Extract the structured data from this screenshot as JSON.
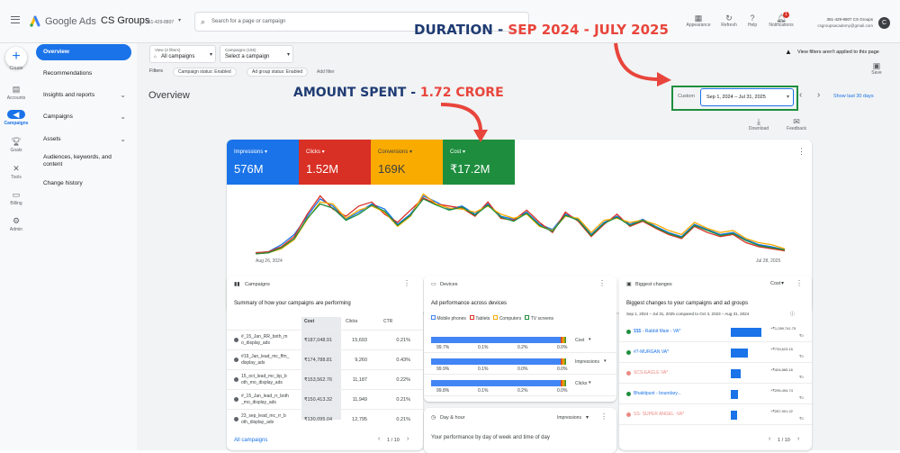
{
  "top": {
    "menu_icon": "menu-icon",
    "logo_text": "Google Ads",
    "account_name": "CS Groups",
    "account_id": "351-429-8807",
    "search_placeholder": "Search for a page or campaign",
    "appearance": "Appearance",
    "refresh": "Refresh",
    "help": "Help",
    "notifications": "Notifications",
    "notif_count": "1",
    "user_id": "351-429-8807 CS Groups",
    "user_email": "csgroupsacademy@gmail.com",
    "avatar_letter": "C"
  },
  "rail": [
    {
      "label": "Create",
      "icon": "plus-icon"
    },
    {
      "label": "Accounts",
      "icon": "accounts-icon"
    },
    {
      "label": "Campaigns",
      "icon": "campaigns-icon"
    },
    {
      "label": "Goals",
      "icon": "goals-icon"
    },
    {
      "label": "Tools",
      "icon": "tools-icon"
    },
    {
      "label": "Billing",
      "icon": "billing-icon"
    },
    {
      "label": "Admin",
      "icon": "admin-icon"
    }
  ],
  "sidebar": {
    "items": [
      {
        "label": "Overview"
      },
      {
        "label": "Recommendations"
      },
      {
        "label": "Insights and reports"
      },
      {
        "label": "Campaigns"
      },
      {
        "label": "Assets"
      },
      {
        "label": "Audiences, keywords, and content"
      },
      {
        "label": "Change history"
      }
    ]
  },
  "filters": {
    "view_label": "View (2 filters)",
    "view_value": "All campaigns",
    "campaigns_label": "Campaigns (155)",
    "campaigns_value": "Select a campaign",
    "filters_word": "Filters",
    "chip1": "Campaign status: Enabled",
    "chip2": "Ad group status: Enabled",
    "add_filter": "Add filter",
    "notice": "View filters aren't applied to this page",
    "save": "Save"
  },
  "overview": {
    "title": "Overview",
    "custom": "Custom",
    "date_range": "Sep 1, 2024 – Jul 31, 2025",
    "show_last": "Show last 30 days",
    "download": "Download",
    "feedback": "Feedback"
  },
  "annotations": {
    "duration_prefix": "DURATION - ",
    "duration_value": "SEP 2024 - JULY 2025",
    "amount_prefix": "AMOUNT SPENT - ",
    "amount_value": "1.72 CRORE"
  },
  "metrics": [
    {
      "label": "Impressions",
      "value": "576M",
      "color": "#1a73e8"
    },
    {
      "label": "Clicks",
      "value": "1.52M",
      "color": "#d93025"
    },
    {
      "label": "Conversions",
      "value": "169K",
      "color": "#f9ab00"
    },
    {
      "label": "Cost",
      "value": "₹17.2M",
      "color": "#1e8e3e"
    }
  ],
  "chart_data": {
    "type": "line",
    "x_start_label": "Aug 26, 2024",
    "x_end_label": "Jul 28, 2025",
    "series": [
      {
        "name": "Impressions",
        "color": "#1a73e8",
        "values": [
          2,
          3,
          10,
          20,
          38,
          55,
          48,
          35,
          42,
          50,
          45,
          30,
          40,
          58,
          52,
          45,
          48,
          40,
          50,
          38,
          35,
          42,
          30,
          25,
          40,
          35,
          20,
          32,
          38,
          30,
          35,
          28,
          22,
          18,
          30,
          25,
          20,
          22,
          15,
          10,
          8,
          5
        ]
      },
      {
        "name": "Clicks",
        "color": "#d93025",
        "values": [
          2,
          3,
          8,
          18,
          40,
          58,
          45,
          38,
          48,
          52,
          40,
          32,
          44,
          56,
          50,
          48,
          46,
          38,
          52,
          36,
          34,
          44,
          32,
          22,
          42,
          33,
          18,
          30,
          40,
          28,
          33,
          26,
          20,
          16,
          28,
          22,
          18,
          20,
          12,
          8,
          6,
          4
        ]
      },
      {
        "name": "Conversions",
        "color": "#f9ab00",
        "values": [
          1,
          2,
          6,
          15,
          35,
          52,
          50,
          36,
          44,
          48,
          42,
          28,
          38,
          60,
          50,
          46,
          45,
          42,
          48,
          40,
          36,
          40,
          28,
          24,
          38,
          36,
          22,
          34,
          36,
          32,
          34,
          30,
          24,
          20,
          32,
          26,
          22,
          24,
          16,
          12,
          10,
          6
        ]
      },
      {
        "name": "Cost",
        "color": "#1e8e3e",
        "values": [
          1,
          2,
          7,
          16,
          36,
          50,
          46,
          34,
          40,
          49,
          43,
          29,
          39,
          55,
          49,
          44,
          47,
          39,
          49,
          37,
          33,
          41,
          29,
          23,
          39,
          34,
          19,
          31,
          37,
          29,
          34,
          27,
          21,
          17,
          29,
          24,
          19,
          21,
          14,
          9,
          7,
          5
        ]
      }
    ]
  },
  "campaigns_card": {
    "title": "Campaigns",
    "subtitle": "Summary of how your campaigns are performing",
    "col_cost": "Cost",
    "col_clicks": "Clicks",
    "col_ctr": "CTR",
    "rows": [
      {
        "name": "#_15_Jan_RR_both_m o_display_ads",
        "cost": "₹187,048.91",
        "clicks": "15,693",
        "ctr": "0.21%"
      },
      {
        "name": "#19_Jan_lead_mc_ffm_ display_ads",
        "cost": "₹174,788.81",
        "clicks": "9,260",
        "ctr": "0.43%"
      },
      {
        "name": "15_oct_lead_mc_bp_b oth_mo_display_ads",
        "cost": "₹153,562.76",
        "clicks": "11,187",
        "ctr": "0.22%"
      },
      {
        "name": "#_15_Jan_lead_rr_both _mo_display_ads",
        "cost": "₹150,413.32",
        "clicks": "11,949",
        "ctr": "0.21%"
      },
      {
        "name": "23_sep_lead_mc_rr_b oth_display_ads",
        "cost": "₹130,095.04",
        "clicks": "12,795",
        "ctr": "0.21%"
      }
    ],
    "all_link": "All campaigns",
    "pager": "1 / 10"
  },
  "devices_card": {
    "title": "Devices",
    "subtitle": "Ad performance across devices",
    "legend": [
      "Mobile phones",
      "Tablets",
      "Computers",
      "TV screens"
    ],
    "rows": [
      {
        "metric": "Cost",
        "mobile": "99.7%",
        "tablet": "0.1%",
        "computer": "0.2%",
        "tv": "0.0%",
        "fill": 0.997
      },
      {
        "metric": "Impressions",
        "mobile": "99.9%",
        "tablet": "0.1%",
        "computer": "0.0%",
        "tv": "0.0%",
        "fill": 0.999
      },
      {
        "metric": "Clicks",
        "mobile": "99.8%",
        "tablet": "0.1%",
        "computer": "0.2%",
        "tv": "0.0%",
        "fill": 0.998
      }
    ]
  },
  "dayhour_card": {
    "title": "Day & hour",
    "dropdown": "Impressions",
    "subtitle": "Your performance by day of week and time of day"
  },
  "changes_card": {
    "title": "Biggest changes",
    "dropdown": "Cost",
    "subtitle": "Biggest changes to your campaigns and ad groups",
    "range": "Sep 1, 2024 – Jul 31, 2025 compared to Oct 3, 2023 – Aug 31, 2024",
    "rows": [
      {
        "name": "$$$ - Rabbit Main - VA*",
        "value": "+₹1,289,741.75",
        "sub": "₹0",
        "fill": 1.0,
        "active": true
      },
      {
        "name": "#7-MURGAN VA*",
        "value": "+₹733,623.15",
        "sub": "₹0",
        "fill": 0.57,
        "active": true
      },
      {
        "name": "SCS-EAGLE VA*",
        "value": "+₹404,865.16",
        "sub": "₹0",
        "fill": 0.31,
        "active": false
      },
      {
        "name": "Bhaktipunt - boundary...",
        "value": "+₹295,494.74",
        "sub": "₹0",
        "fill": 0.23,
        "active": true
      },
      {
        "name": "SS- SUPER ANGEL -VA*",
        "value": "+₹287,901.22",
        "sub": "₹0",
        "fill": 0.22,
        "active": false
      }
    ],
    "pager": "1 / 10"
  }
}
